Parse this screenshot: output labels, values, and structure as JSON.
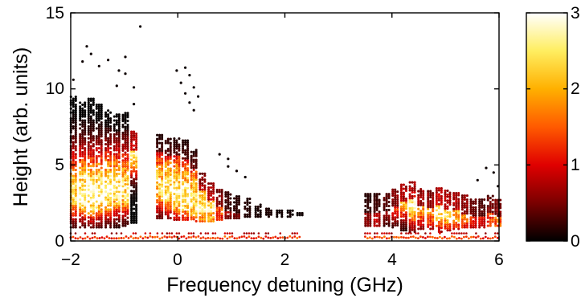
{
  "chart_data": {
    "type": "scatter",
    "title": "",
    "xlabel": "Frequency detuning (GHz)",
    "ylabel": "Height  (arb. units)",
    "xlim": [
      -2,
      6
    ],
    "ylim": [
      0,
      15
    ],
    "xticks": [
      -2,
      0,
      2,
      4,
      6
    ],
    "xtick_labels": [
      "−2",
      "0",
      "2",
      "4",
      "6"
    ],
    "yticks": [
      0,
      5,
      10,
      15
    ],
    "ytick_labels": [
      "0",
      "5",
      "10",
      "15"
    ],
    "grid": false,
    "colormap": "hot",
    "colorbar": {
      "range": [
        0,
        3
      ],
      "ticks": [
        0,
        1,
        2,
        3
      ],
      "tick_labels": [
        "0",
        "1",
        "2",
        "3"
      ],
      "colors": [
        "#000000",
        "#7a0000",
        "#e00000",
        "#ff5a00",
        "#ffb000",
        "#ffee60",
        "#ffffff"
      ]
    },
    "columns": [
      {
        "x": -1.95,
        "ymin": 0.9,
        "ymax": 9.6,
        "mode": 3.0,
        "peak": 2.4
      },
      {
        "x": -1.78,
        "ymin": 0.9,
        "ymax": 9.2,
        "mode": 3.0,
        "peak": 2.8
      },
      {
        "x": -1.62,
        "ymin": 0.9,
        "ymax": 9.4,
        "mode": 2.9,
        "peak": 3.0
      },
      {
        "x": -1.47,
        "ymin": 0.9,
        "ymax": 9.0,
        "mode": 3.0,
        "peak": 2.9
      },
      {
        "x": -1.3,
        "ymin": 0.9,
        "ymax": 8.6,
        "mode": 3.1,
        "peak": 2.8
      },
      {
        "x": -1.14,
        "ymin": 0.9,
        "ymax": 8.4,
        "mode": 3.2,
        "peak": 2.6
      },
      {
        "x": -0.98,
        "ymin": 1.0,
        "ymax": 8.5,
        "mode": 3.2,
        "peak": 2.5
      },
      {
        "x": -0.82,
        "ymin": 1.2,
        "ymax": 7.2,
        "mode": 5.8,
        "peak": 2.5
      },
      {
        "x": -0.34,
        "ymin": 1.5,
        "ymax": 7.0,
        "mode": 3.4,
        "peak": 2.2
      },
      {
        "x": -0.18,
        "ymin": 1.5,
        "ymax": 6.8,
        "mode": 3.3,
        "peak": 2.6
      },
      {
        "x": -0.02,
        "ymin": 1.4,
        "ymax": 6.8,
        "mode": 3.0,
        "peak": 2.7
      },
      {
        "x": 0.14,
        "ymin": 1.4,
        "ymax": 6.6,
        "mode": 2.8,
        "peak": 2.6
      },
      {
        "x": 0.3,
        "ymin": 1.3,
        "ymax": 6.0,
        "mode": 2.5,
        "peak": 2.5
      },
      {
        "x": 0.46,
        "ymin": 1.3,
        "ymax": 4.5,
        "mode": 2.3,
        "peak": 2.6
      },
      {
        "x": 0.62,
        "ymin": 1.3,
        "ymax": 3.8,
        "mode": 2.2,
        "peak": 2.4
      },
      {
        "x": 0.78,
        "ymin": 1.4,
        "ymax": 3.4,
        "mode": 2.2,
        "peak": 1.5
      },
      {
        "x": 0.94,
        "ymin": 1.5,
        "ymax": 3.2,
        "mode": 2.1,
        "peak": 0.7
      },
      {
        "x": 1.1,
        "ymin": 1.5,
        "ymax": 3.0,
        "mode": 2.0,
        "peak": 0.5
      },
      {
        "x": 1.3,
        "ymin": 1.6,
        "ymax": 2.8,
        "mode": 2.0,
        "peak": 0.4
      },
      {
        "x": 1.5,
        "ymin": 1.6,
        "ymax": 2.4,
        "mode": 1.9,
        "peak": 0.3
      },
      {
        "x": 1.7,
        "ymin": 1.6,
        "ymax": 2.2,
        "mode": 1.9,
        "peak": 0.3
      },
      {
        "x": 1.9,
        "ymin": 1.6,
        "ymax": 2.1,
        "mode": 1.8,
        "peak": 0.2
      },
      {
        "x": 2.1,
        "ymin": 1.6,
        "ymax": 2.0,
        "mode": 1.8,
        "peak": 0.2
      },
      {
        "x": 2.28,
        "ymin": 1.7,
        "ymax": 1.9,
        "mode": 1.8,
        "peak": 0.2
      },
      {
        "x": 3.55,
        "ymin": 1.0,
        "ymax": 3.1,
        "mode": 1.5,
        "peak": 0.6
      },
      {
        "x": 3.72,
        "ymin": 1.0,
        "ymax": 3.1,
        "mode": 1.5,
        "peak": 0.8
      },
      {
        "x": 3.9,
        "ymin": 1.0,
        "ymax": 3.2,
        "mode": 2.7,
        "peak": 1.0
      },
      {
        "x": 4.06,
        "ymin": 0.9,
        "ymax": 3.4,
        "mode": 2.8,
        "peak": 1.6
      },
      {
        "x": 4.22,
        "ymin": 0.7,
        "ymax": 3.8,
        "mode": 2.9,
        "peak": 2.2
      },
      {
        "x": 4.38,
        "ymin": 0.6,
        "ymax": 3.9,
        "mode": 2.5,
        "peak": 2.6
      },
      {
        "x": 4.54,
        "ymin": 0.8,
        "ymax": 3.5,
        "mode": 2.4,
        "peak": 2.0
      },
      {
        "x": 4.72,
        "ymin": 0.8,
        "ymax": 3.3,
        "mode": 2.1,
        "peak": 1.8
      },
      {
        "x": 4.88,
        "ymin": 0.6,
        "ymax": 3.5,
        "mode": 2.2,
        "peak": 2.7
      },
      {
        "x": 5.04,
        "ymin": 0.7,
        "ymax": 3.3,
        "mode": 2.1,
        "peak": 2.4
      },
      {
        "x": 5.2,
        "ymin": 0.8,
        "ymax": 3.2,
        "mode": 2.0,
        "peak": 2.2
      },
      {
        "x": 5.36,
        "ymin": 0.9,
        "ymax": 3.0,
        "mode": 1.9,
        "peak": 1.8
      },
      {
        "x": 5.52,
        "ymin": 0.9,
        "ymax": 2.8,
        "mode": 1.8,
        "peak": 1.2
      },
      {
        "x": 5.68,
        "ymin": 0.9,
        "ymax": 2.8,
        "mode": 1.6,
        "peak": 1.0
      },
      {
        "x": 5.84,
        "ymin": 1.0,
        "ymax": 3.0,
        "mode": 1.6,
        "peak": 1.4
      },
      {
        "x": 5.98,
        "ymin": 1.0,
        "ymax": 2.8,
        "mode": 1.5,
        "peak": 1.6
      }
    ],
    "baseline_points": {
      "y": 0.15,
      "x_ranges": [
        [
          -2,
          2.3
        ],
        [
          3.5,
          6
        ]
      ],
      "intensity": 1.3
    },
    "outliers": [
      [
        -1.95,
        10.6
      ],
      [
        -1.78,
        11.8
      ],
      [
        -1.7,
        12.8
      ],
      [
        -1.62,
        12.3
      ],
      [
        -1.47,
        11.5
      ],
      [
        -1.3,
        11.9
      ],
      [
        -1.14,
        10.2
      ],
      [
        -1.1,
        11.2
      ],
      [
        -0.98,
        12.1
      ],
      [
        -0.98,
        11.0
      ],
      [
        -0.82,
        10.1
      ],
      [
        -0.7,
        14.1
      ],
      [
        -0.82,
        9.0
      ],
      [
        -0.02,
        11.2
      ],
      [
        0.06,
        10.4
      ],
      [
        0.14,
        11.4
      ],
      [
        0.22,
        10.9
      ],
      [
        0.14,
        9.7
      ],
      [
        0.22,
        9.1
      ],
      [
        0.3,
        8.6
      ],
      [
        0.3,
        10.1
      ],
      [
        0.38,
        9.5
      ],
      [
        0.78,
        5.7
      ],
      [
        0.94,
        5.4
      ],
      [
        1.1,
        4.6
      ],
      [
        1.26,
        4.2
      ],
      [
        0.94,
        4.9
      ],
      [
        5.6,
        4.0
      ],
      [
        5.76,
        4.8
      ],
      [
        5.9,
        4.5
      ],
      [
        5.98,
        3.6
      ]
    ]
  }
}
